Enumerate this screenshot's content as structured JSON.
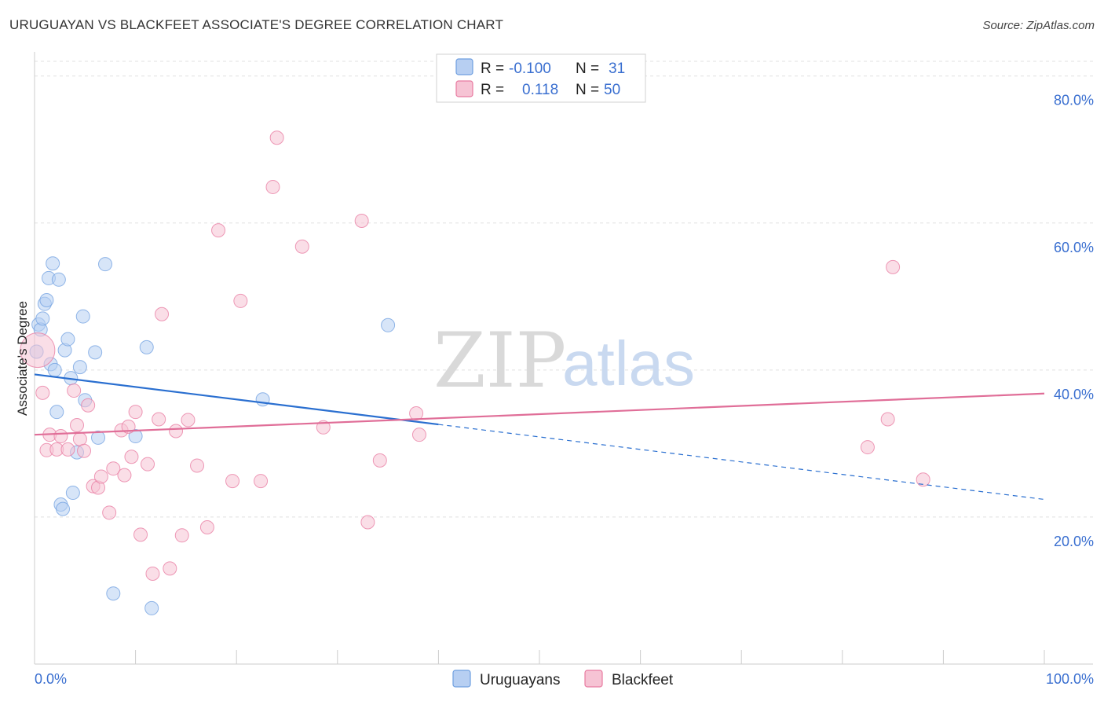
{
  "title": "URUGUAYAN VS BLACKFEET ASSOCIATE'S DEGREE CORRELATION CHART",
  "source": "Source: ZipAtlas.com",
  "watermark": {
    "zip": "ZIP",
    "atlas": "atlas"
  },
  "colors": {
    "uruguayans": "#6f9fe0",
    "uruguayans_fill": "#b7cff2",
    "blackfeet": "#e87aa0",
    "blackfeet_fill": "#f6c3d4",
    "trend_blue": "#2a6fd0",
    "trend_pink": "#e06e98",
    "axis_label": "#3a6fd0",
    "grid": "#e0e0e0"
  },
  "legend": {
    "rows": [
      {
        "r_label": "R =",
        "r_value": "-0.100",
        "n_label": "N =",
        "n_value": "31",
        "series": "uruguayans"
      },
      {
        "r_label": "R =",
        "r_value": "0.118",
        "n_label": "N =",
        "n_value": "50",
        "series": "blackfeet"
      }
    ]
  },
  "chart_data": {
    "type": "scatter",
    "title": "URUGUAYAN VS BLACKFEET ASSOCIATE'S DEGREE CORRELATION CHART",
    "xlabel": "",
    "ylabel": "Associate's Degree",
    "xlim": [
      0,
      100
    ],
    "ylim": [
      0,
      82
    ],
    "x_tick_labels": [
      "0.0%",
      "100.0%"
    ],
    "y_ticks": [
      20,
      40,
      60,
      80
    ],
    "y_tick_labels": [
      "20.0%",
      "40.0%",
      "60.0%",
      "80.0%"
    ],
    "grid": true,
    "legend_position": "bottom-center",
    "series": [
      {
        "name": "Uruguayans",
        "color": "#6f9fe0",
        "x": [
          0.2,
          0.4,
          0.6,
          0.8,
          1.0,
          1.2,
          1.4,
          1.6,
          1.8,
          2.0,
          2.2,
          2.4,
          2.6,
          2.8,
          3.0,
          3.3,
          3.6,
          3.8,
          4.2,
          4.5,
          4.8,
          5.0,
          6.0,
          6.3,
          7.0,
          7.8,
          10.0,
          11.1,
          11.6,
          22.6,
          35.0
        ],
        "y": [
          42.5,
          46.2,
          45.5,
          47.0,
          49.0,
          49.5,
          52.5,
          40.8,
          54.5,
          40.0,
          34.3,
          52.3,
          21.7,
          21.1,
          42.7,
          44.2,
          38.9,
          23.3,
          28.8,
          40.4,
          47.3,
          35.9,
          42.4,
          30.8,
          54.4,
          9.6,
          31.0,
          43.1,
          7.6,
          36.0,
          46.1
        ]
      },
      {
        "name": "Blackfeet",
        "color": "#e87aa0",
        "x": [
          0.3,
          0.8,
          1.2,
          1.5,
          2.2,
          2.6,
          3.3,
          3.9,
          4.2,
          4.5,
          4.9,
          5.3,
          5.8,
          6.3,
          6.6,
          7.4,
          7.8,
          8.6,
          8.9,
          9.3,
          9.6,
          10.0,
          10.5,
          11.2,
          11.7,
          12.3,
          12.6,
          13.4,
          14.0,
          14.6,
          15.2,
          16.1,
          17.1,
          18.2,
          19.6,
          20.4,
          22.4,
          23.6,
          24.0,
          26.5,
          28.6,
          32.4,
          33.0,
          34.2,
          37.8,
          38.1,
          82.5,
          84.5,
          85.0,
          88.0
        ],
        "y": [
          42.7,
          36.9,
          29.1,
          31.2,
          29.2,
          31.0,
          29.2,
          37.2,
          32.5,
          30.6,
          29.0,
          35.2,
          24.2,
          24.0,
          25.5,
          20.6,
          26.6,
          31.8,
          25.7,
          32.3,
          28.2,
          34.3,
          17.6,
          27.2,
          12.3,
          33.3,
          47.6,
          13.0,
          31.7,
          17.5,
          33.2,
          27.0,
          18.6,
          59.0,
          24.9,
          49.4,
          24.9,
          64.9,
          71.6,
          56.8,
          32.2,
          60.3,
          19.3,
          27.7,
          34.1,
          31.2,
          29.5,
          33.3,
          54.0,
          25.1
        ]
      }
    ],
    "trend_lines": [
      {
        "series": "Uruguayans",
        "solid": {
          "x": [
            0,
            40
          ],
          "y": [
            39.4,
            32.6
          ]
        },
        "dashed": {
          "x": [
            40,
            100
          ],
          "y": [
            32.6,
            22.4
          ]
        }
      },
      {
        "series": "Blackfeet",
        "solid": {
          "x": [
            0,
            100
          ],
          "y": [
            31.2,
            36.8
          ]
        }
      }
    ]
  },
  "bottom_legend": [
    {
      "label": "Uruguayans",
      "series": "uruguayans"
    },
    {
      "label": "Blackfeet",
      "series": "blackfeet"
    }
  ]
}
